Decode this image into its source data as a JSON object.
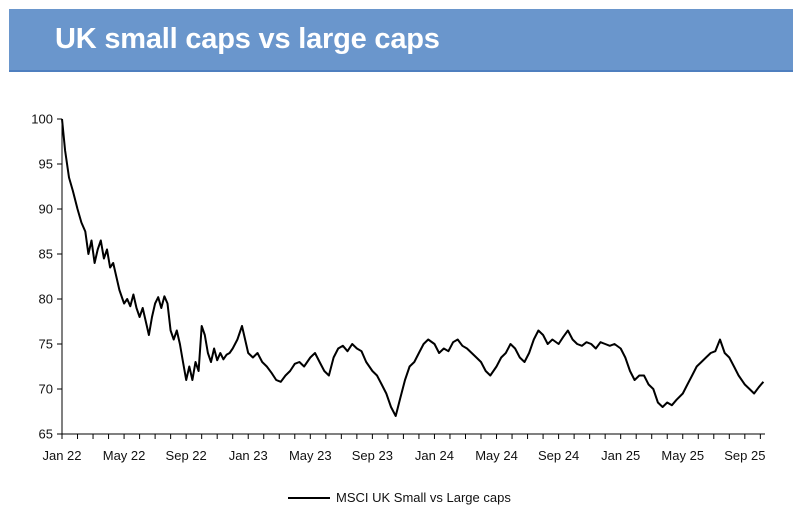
{
  "header": {
    "title": "UK small caps vs large caps",
    "band_color": "#6a96cc"
  },
  "chart_data": {
    "type": "line",
    "title": "UK small caps vs large caps",
    "xlabel": "",
    "ylabel": "",
    "ylim": [
      65,
      100
    ],
    "y_ticks": [
      65,
      70,
      75,
      80,
      85,
      90,
      95,
      100
    ],
    "x_tick_labels": [
      "Jan 22",
      "May 22",
      "Sep 22",
      "Jan 23",
      "May 23",
      "Sep 23",
      "Jan 24",
      "May 24",
      "Sep 24",
      "Jan 25",
      "May 25",
      "Sep 25"
    ],
    "x_tick_months": [
      0,
      4,
      8,
      12,
      16,
      20,
      24,
      28,
      32,
      36,
      40,
      44
    ],
    "xlim_months": [
      0,
      45.3
    ],
    "grid": false,
    "legend_position": "bottom-center",
    "series": [
      {
        "name": "MSCI UK Small vs Large caps",
        "color": "#000000",
        "x_months": [
          0,
          0.2,
          0.45,
          0.7,
          1.0,
          1.25,
          1.5,
          1.7,
          1.9,
          2.1,
          2.3,
          2.5,
          2.7,
          2.9,
          3.1,
          3.3,
          3.5,
          3.7,
          3.9,
          4.0,
          4.2,
          4.4,
          4.6,
          4.8,
          5.0,
          5.2,
          5.4,
          5.6,
          5.8,
          6.0,
          6.2,
          6.4,
          6.6,
          6.8,
          7.0,
          7.2,
          7.4,
          7.6,
          7.8,
          8.0,
          8.2,
          8.4,
          8.6,
          8.8,
          9.0,
          9.2,
          9.4,
          9.6,
          9.8,
          10.0,
          10.2,
          10.4,
          10.6,
          10.8,
          11.0,
          11.3,
          11.6,
          12.0,
          12.3,
          12.6,
          12.9,
          13.2,
          13.5,
          13.8,
          14.1,
          14.4,
          14.7,
          15.0,
          15.3,
          15.6,
          16.0,
          16.3,
          16.6,
          16.9,
          17.2,
          17.5,
          17.8,
          18.1,
          18.4,
          18.7,
          19.0,
          19.3,
          19.6,
          20.0,
          20.3,
          20.6,
          20.9,
          21.2,
          21.5,
          21.8,
          22.1,
          22.4,
          22.7,
          23.0,
          23.3,
          23.6,
          24.0,
          24.3,
          24.6,
          24.9,
          25.2,
          25.5,
          25.8,
          26.1,
          26.4,
          26.7,
          27.0,
          27.3,
          27.6,
          28.0,
          28.3,
          28.6,
          28.9,
          29.2,
          29.5,
          29.8,
          30.1,
          30.4,
          30.7,
          31.0,
          31.3,
          31.6,
          32.0,
          32.3,
          32.6,
          32.9,
          33.2,
          33.5,
          33.8,
          34.1,
          34.4,
          34.7,
          35.0,
          35.3,
          35.6,
          36.0,
          36.3,
          36.6,
          36.9,
          37.2,
          37.5,
          37.8,
          38.1,
          38.4,
          38.7,
          39.0,
          39.3,
          39.6,
          40.0,
          40.3,
          40.6,
          40.9,
          41.2,
          41.5,
          41.8,
          42.1,
          42.4,
          42.7,
          43.0,
          43.3,
          43.6,
          44.0,
          44.3,
          44.6,
          44.9,
          45.2
        ],
        "values": [
          100,
          96.5,
          93.5,
          92.0,
          90.0,
          88.5,
          87.5,
          85.0,
          86.5,
          84.0,
          85.5,
          86.5,
          84.5,
          85.5,
          83.5,
          84.0,
          82.5,
          81.0,
          80.0,
          79.5,
          80.0,
          79.2,
          80.5,
          79.0,
          78.0,
          79.0,
          77.5,
          76.0,
          78.0,
          79.5,
          80.2,
          79.0,
          80.3,
          79.5,
          76.5,
          75.5,
          76.5,
          75.0,
          73.0,
          71.0,
          72.5,
          71.0,
          73.0,
          72.0,
          77.0,
          76.0,
          74.0,
          73.0,
          74.5,
          73.2,
          74.0,
          73.3,
          73.8,
          74.0,
          74.5,
          75.5,
          77.0,
          74.0,
          73.5,
          74.0,
          73.0,
          72.5,
          71.8,
          71.0,
          70.8,
          71.5,
          72.0,
          72.8,
          73.0,
          72.5,
          73.5,
          74.0,
          73.0,
          72.0,
          71.5,
          73.5,
          74.5,
          74.8,
          74.2,
          75.0,
          74.5,
          74.2,
          73.0,
          72.0,
          71.5,
          70.5,
          69.5,
          68.0,
          67.0,
          69.0,
          71.0,
          72.5,
          73.0,
          74.0,
          75.0,
          75.5,
          75.0,
          74.0,
          74.5,
          74.2,
          75.2,
          75.5,
          74.8,
          74.5,
          74.0,
          73.5,
          73.0,
          72.0,
          71.5,
          72.5,
          73.5,
          74.0,
          75.0,
          74.5,
          73.5,
          73.0,
          74.0,
          75.5,
          76.5,
          76.0,
          75.0,
          75.5,
          75.0,
          75.8,
          76.5,
          75.5,
          75.0,
          74.8,
          75.2,
          75.0,
          74.5,
          75.2,
          75.0,
          74.8,
          75.0,
          74.5,
          73.5,
          72.0,
          71.0,
          71.5,
          71.5,
          70.5,
          70.0,
          68.5,
          68.0,
          68.5,
          68.2,
          68.8,
          69.5,
          70.5,
          71.5,
          72.5,
          73.0,
          73.5,
          74.0,
          74.2,
          75.5,
          74.0,
          73.5,
          72.5,
          71.5,
          70.5,
          70.0,
          69.5,
          70.2,
          70.8
        ]
      }
    ]
  }
}
